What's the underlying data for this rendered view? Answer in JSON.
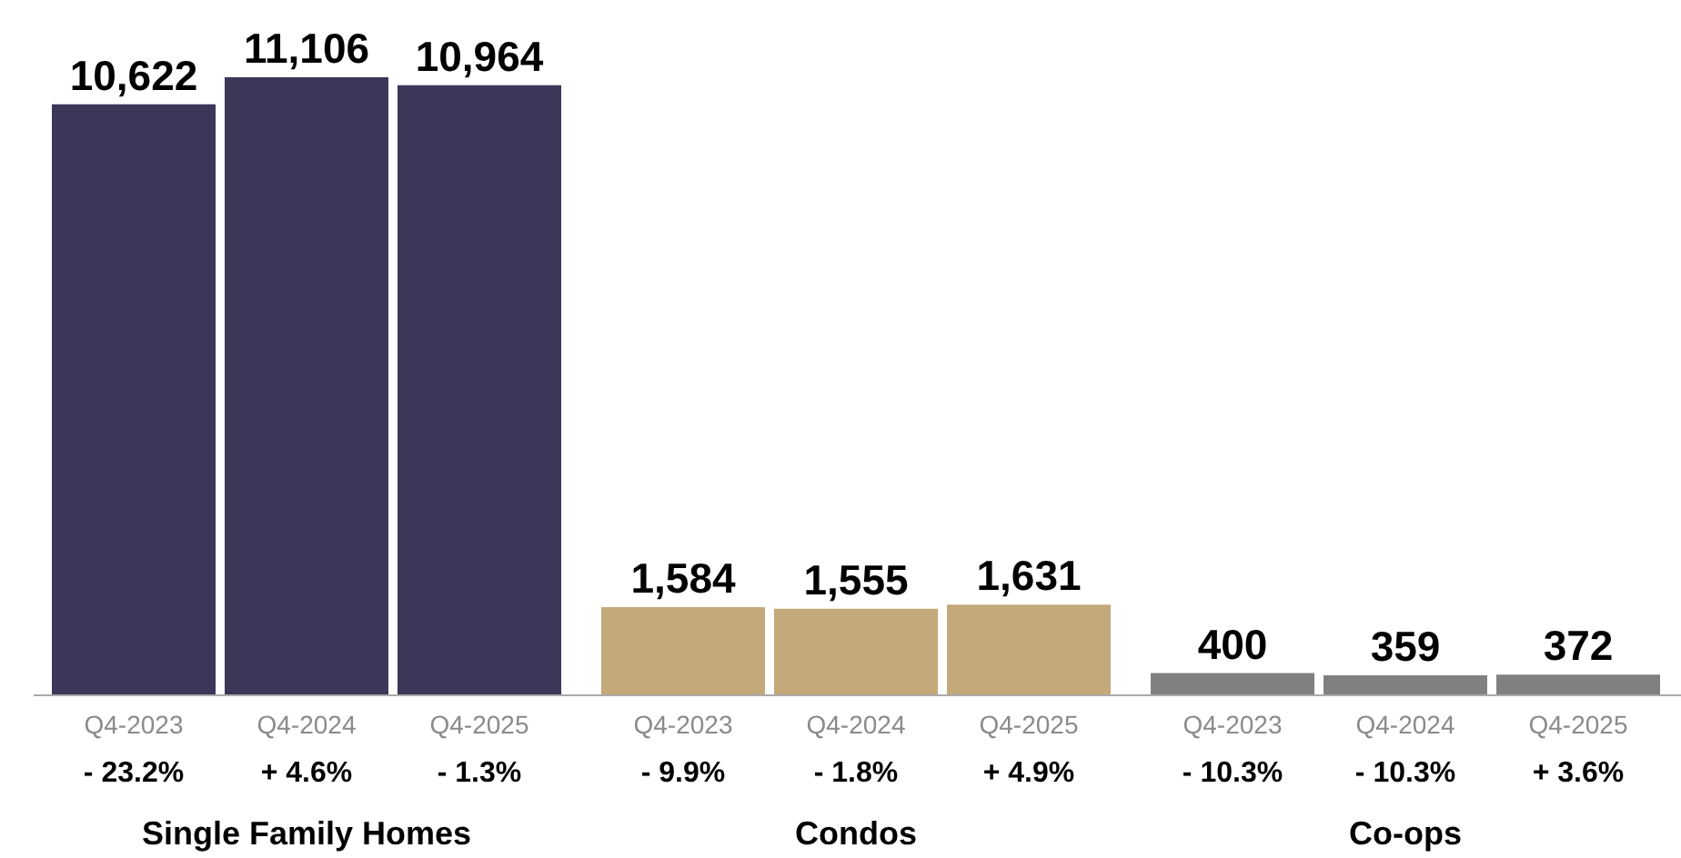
{
  "chart_data": {
    "type": "bar",
    "categories": [
      "Q4-2023",
      "Q4-2024",
      "Q4-2025",
      "Q4-2023",
      "Q4-2024",
      "Q4-2025",
      "Q4-2023",
      "Q4-2024",
      "Q4-2025"
    ],
    "values": [
      10622,
      11106,
      10964,
      1584,
      1555,
      1631,
      400,
      359,
      372
    ],
    "colors": [
      "#3b3758",
      "#3b3758",
      "#3b3758",
      "#c4a97a",
      "#c4a97a",
      "#c4a97a",
      "#808080",
      "#808080",
      "#808080"
    ],
    "value_labels": [
      "10,622",
      "11,106",
      "10,964",
      "1,584",
      "1,555",
      "1,631",
      "400",
      "359",
      "372"
    ],
    "annotations": [
      "- 23.2%",
      "+ 4.6%",
      "- 1.3%",
      "- 9.9%",
      "- 1.8%",
      "+ 4.9%",
      "- 10.3%",
      "- 10.3%",
      "+ 3.6%",
      "Single Family Homes",
      "Condos",
      "Co-ops"
    ],
    "grid": false
  }
}
